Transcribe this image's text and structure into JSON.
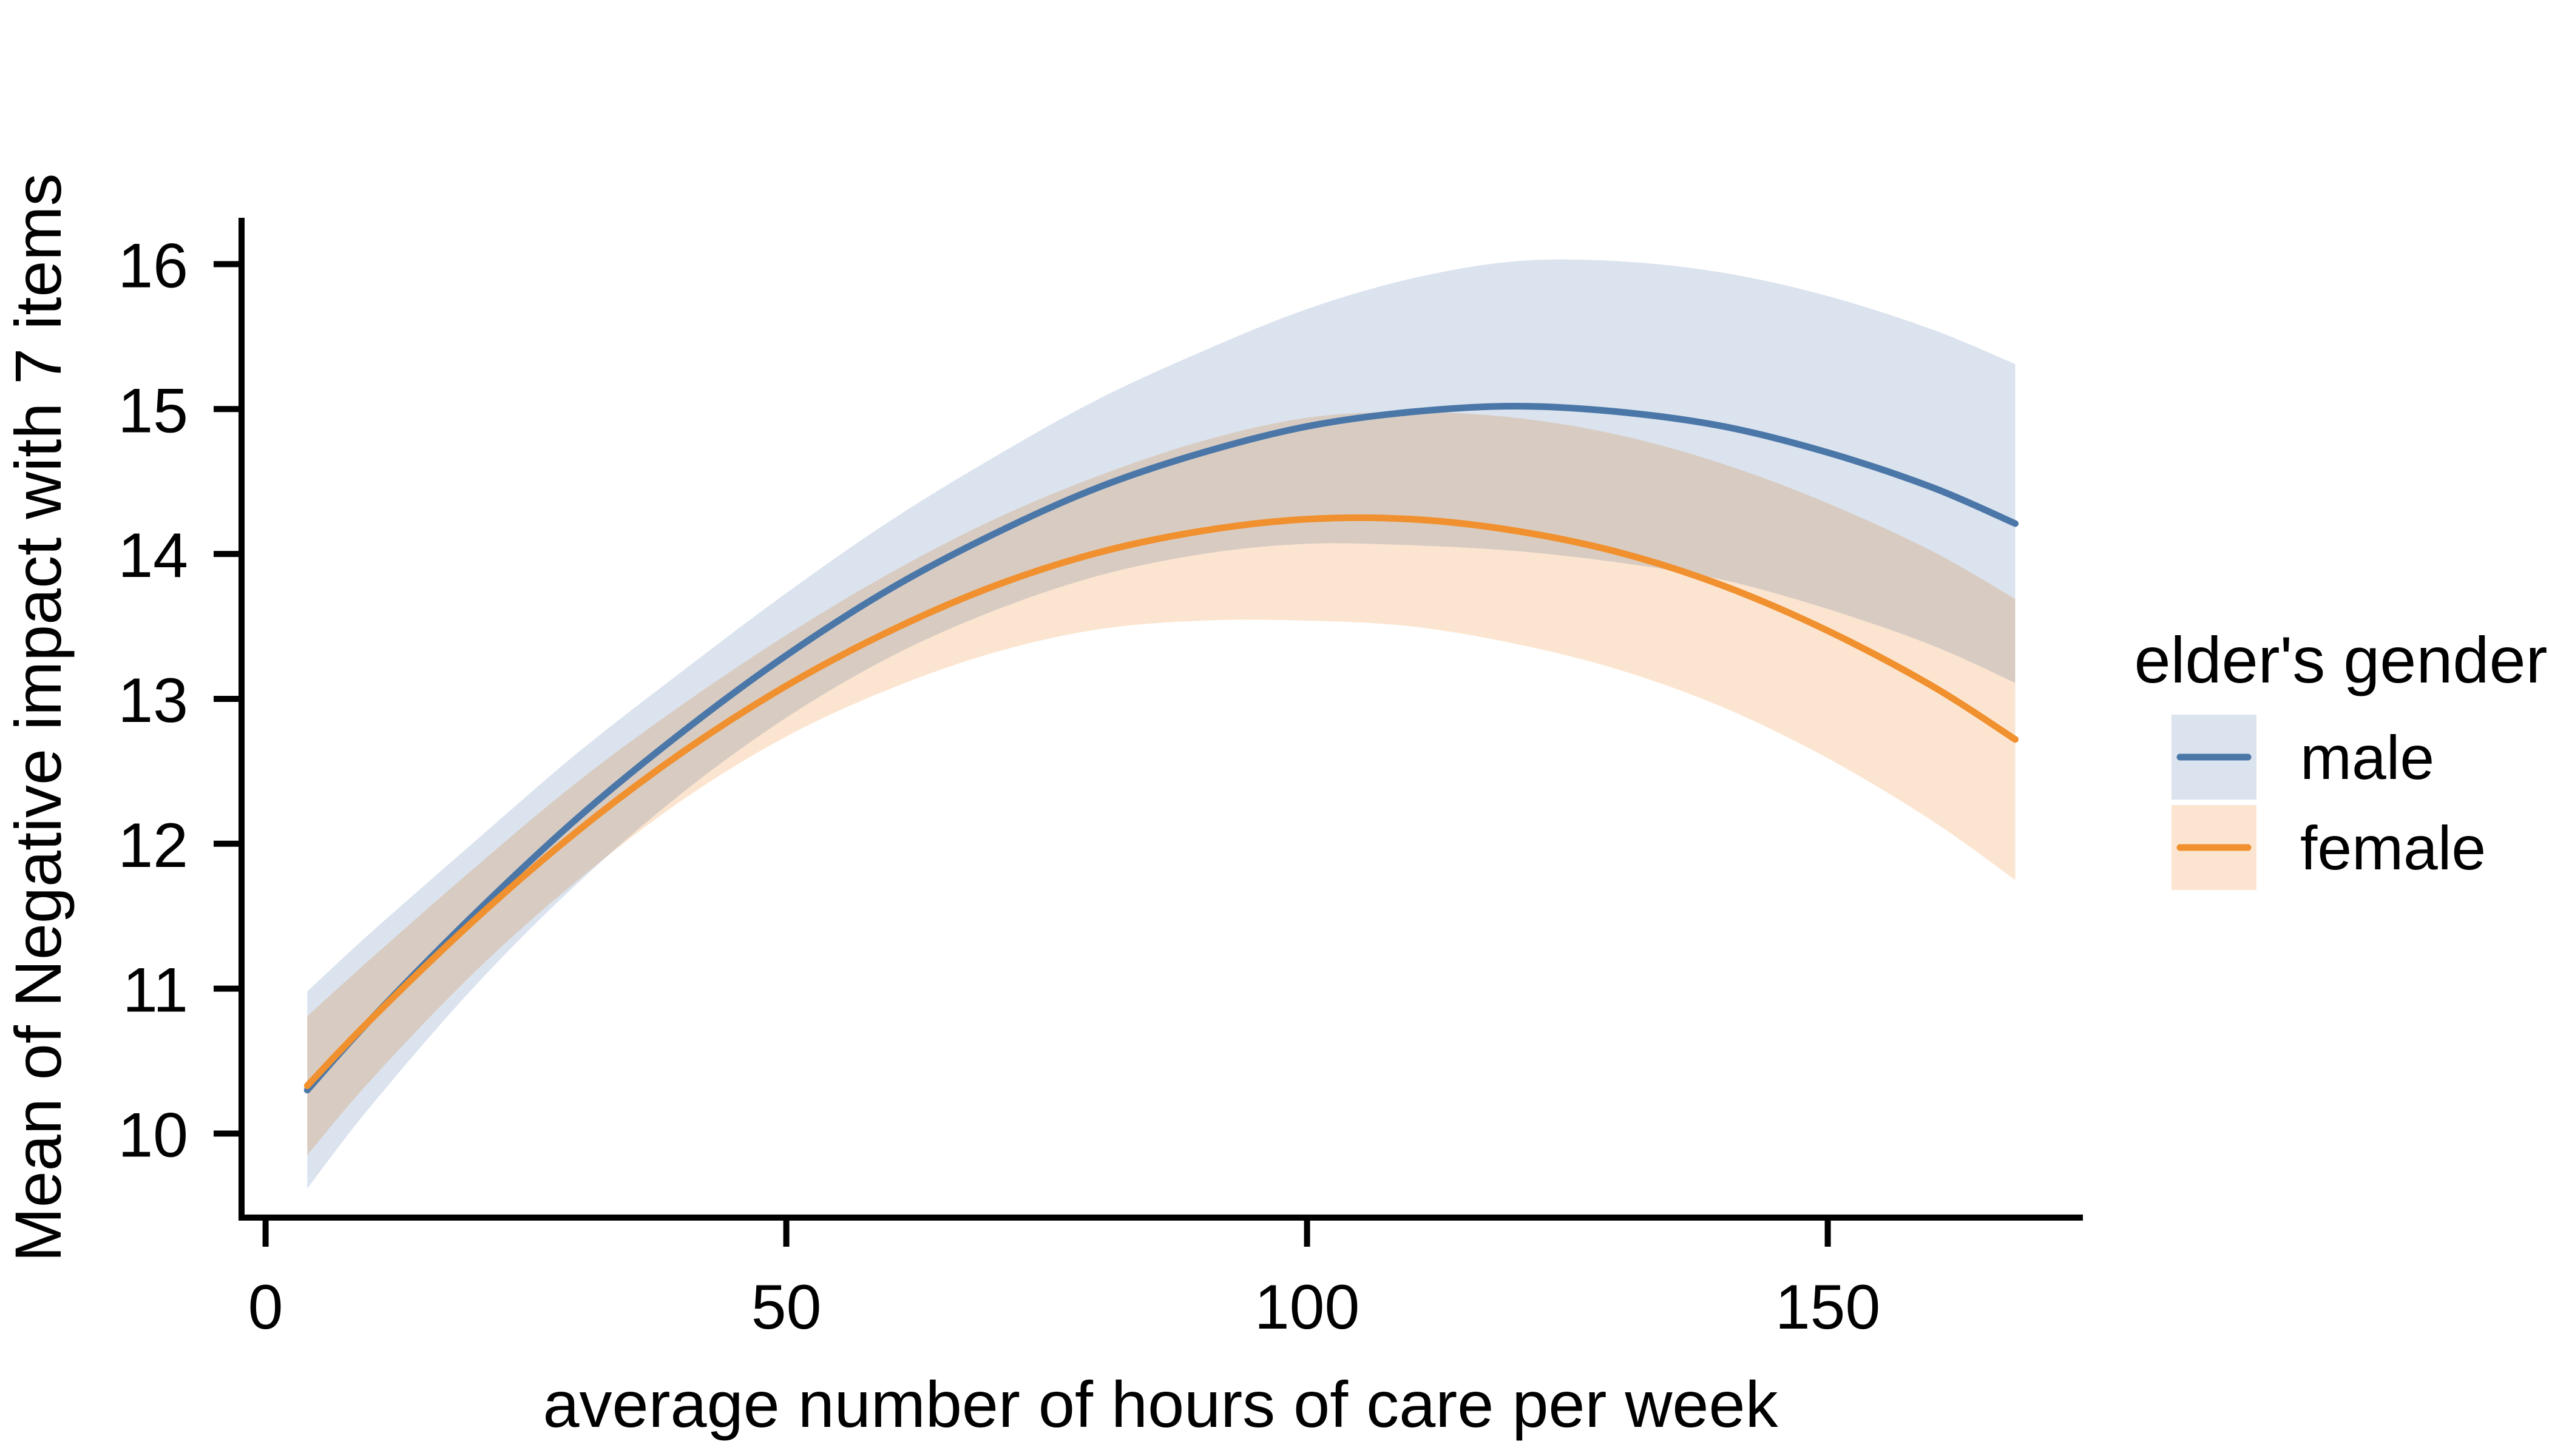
{
  "chart_data": {
    "type": "line",
    "title": "",
    "xlabel": "average number of hours of care per week",
    "ylabel": "Mean of Negative impact with 7 items",
    "x_ticks": [
      0,
      50,
      100,
      150
    ],
    "y_ticks": [
      10,
      11,
      12,
      13,
      14,
      15,
      16
    ],
    "xlim": [
      -2.6,
      174.5
    ],
    "ylim": [
      9.42,
      16.32
    ],
    "grid": false,
    "background": "#ffffff",
    "axis_color": "#000000",
    "legend": {
      "title": "elder's gender",
      "position": "right",
      "entries": [
        {
          "label": "male",
          "line_color": "#4b77a8",
          "band_color": "#dbe3ee"
        },
        {
          "label": "female",
          "line_color": "#f0902e",
          "band_color": "#fce5d0"
        }
      ]
    },
    "x": [
      4,
      10,
      20,
      30,
      40,
      50,
      60,
      70,
      80,
      90,
      100,
      110,
      120,
      130,
      140,
      150,
      160,
      168
    ],
    "series": [
      {
        "name": "male",
        "line": [
          10.3,
          10.78,
          11.51,
          12.18,
          12.77,
          13.3,
          13.76,
          14.14,
          14.46,
          14.7,
          14.88,
          14.98,
          15.02,
          14.98,
          14.88,
          14.7,
          14.46,
          14.21
        ],
        "upper": [
          10.98,
          11.38,
          12.01,
          12.63,
          13.19,
          13.73,
          14.23,
          14.67,
          15.07,
          15.4,
          15.69,
          15.9,
          16.02,
          16.02,
          15.94,
          15.78,
          15.55,
          15.31
        ],
        "lower": [
          9.62,
          10.18,
          11.01,
          11.73,
          12.35,
          12.87,
          13.29,
          13.61,
          13.85,
          14.0,
          14.07,
          14.06,
          14.02,
          13.94,
          13.82,
          13.62,
          13.37,
          13.11
        ]
      },
      {
        "name": "female",
        "line": [
          10.33,
          10.78,
          11.47,
          12.09,
          12.63,
          13.09,
          13.47,
          13.78,
          14.01,
          14.16,
          14.24,
          14.24,
          14.16,
          14.01,
          13.78,
          13.47,
          13.09,
          12.72
        ],
        "upper": [
          10.81,
          11.2,
          11.83,
          12.43,
          12.96,
          13.44,
          13.87,
          14.24,
          14.54,
          14.78,
          14.94,
          14.98,
          14.94,
          14.82,
          14.62,
          14.35,
          14.02,
          13.69
        ],
        "lower": [
          9.85,
          10.36,
          11.11,
          11.75,
          12.3,
          12.74,
          13.07,
          13.32,
          13.48,
          13.54,
          13.54,
          13.5,
          13.38,
          13.2,
          12.94,
          12.59,
          12.16,
          11.75
        ]
      }
    ]
  }
}
